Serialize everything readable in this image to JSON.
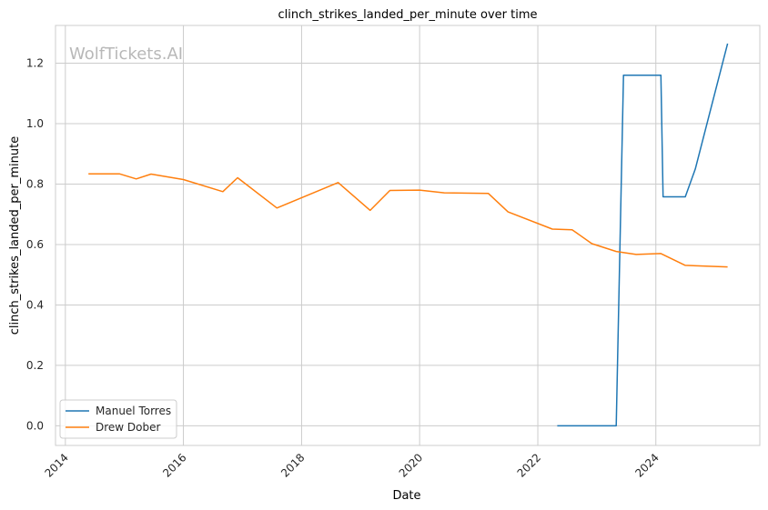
{
  "chart_data": {
    "type": "line",
    "title": "clinch_strikes_landed_per_minute over time",
    "xlabel": "Date",
    "ylabel": "clinch_strikes_landed_per_minute",
    "watermark": "WolfTickets.AI",
    "xlim": [
      "2013-11-01",
      "2025-10-05"
    ],
    "ylim": [
      -0.065,
      1.325
    ],
    "x_ticks": [
      "2014",
      "2016",
      "2018",
      "2020",
      "2022",
      "2024"
    ],
    "y_ticks": [
      "0.0",
      "0.2",
      "0.4",
      "0.6",
      "0.8",
      "1.0",
      "1.2"
    ],
    "grid": true,
    "legend_position": "lower-left",
    "series": [
      {
        "name": "Manuel Torres",
        "color": "#1f77b4",
        "x": [
          "2022-05-01",
          "2022-09-01",
          "2023-01-01",
          "2023-05-01",
          "2023-06-15",
          "2023-10-01",
          "2024-02-01",
          "2024-02-15",
          "2024-07-01",
          "2024-09-01",
          "2025-03-20"
        ],
        "y": [
          0.0,
          0.0,
          0.0,
          0.0,
          1.16,
          1.16,
          1.16,
          0.758,
          0.758,
          0.85,
          1.265
        ]
      },
      {
        "name": "Drew Dober",
        "color": "#ff7f0e",
        "x": [
          "2014-05-24",
          "2014-12-01",
          "2015-03-15",
          "2015-06-15",
          "2016-01-01",
          "2016-09-01",
          "2016-12-01",
          "2017-08-01",
          "2018-08-15",
          "2019-03-01",
          "2019-07-01",
          "2020-01-01",
          "2020-06-01",
          "2021-03-01",
          "2021-07-01",
          "2022-04-01",
          "2022-08-01",
          "2022-12-01",
          "2023-05-01",
          "2023-09-01",
          "2024-02-01",
          "2024-07-01",
          "2025-03-20"
        ],
        "y": [
          0.834,
          0.834,
          0.817,
          0.833,
          0.815,
          0.775,
          0.821,
          0.721,
          0.805,
          0.713,
          0.779,
          0.78,
          0.771,
          0.769,
          0.708,
          0.651,
          0.649,
          0.603,
          0.577,
          0.567,
          0.57,
          0.531,
          0.526
        ]
      }
    ]
  }
}
